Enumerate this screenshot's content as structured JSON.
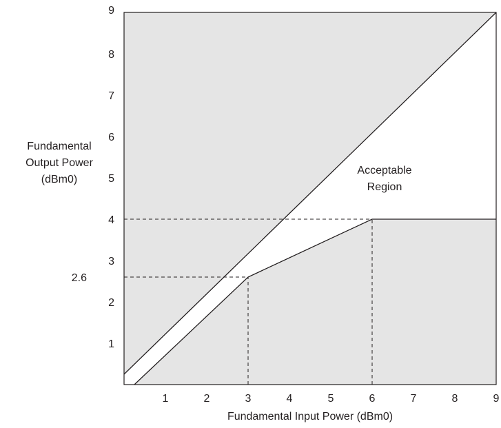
{
  "chart_data": {
    "type": "area",
    "title": "",
    "xlabel": "Fundamental Input Power (dBm0)",
    "ylabel": [
      "Fundamental",
      "Output Power",
      "(dBm0)"
    ],
    "xlim": [
      0,
      9
    ],
    "ylim": [
      0,
      9
    ],
    "x_ticks": [
      "1",
      "2",
      "3",
      "4",
      "5",
      "6",
      "7",
      "8",
      "9"
    ],
    "y_ticks": [
      "1",
      "2",
      "3",
      "4",
      "5",
      "6",
      "7",
      "8",
      "9"
    ],
    "grid": false,
    "legend": "none",
    "series": [
      {
        "points": [
          [
            0,
            0.25
          ],
          [
            9,
            9
          ]
        ]
      },
      {
        "points": [
          [
            0.25,
            0
          ],
          [
            3,
            2.6
          ],
          [
            6,
            4
          ],
          [
            9,
            4
          ]
        ]
      }
    ],
    "shaded_region_color": "#e5e5e5",
    "unshaded_region_color": "#ffffff",
    "reference_lines": [
      {
        "orientation": "horizontal",
        "y": 2.6,
        "x_from": 0,
        "x_to": 3
      },
      {
        "orientation": "vertical",
        "x": 3,
        "y_from": 0,
        "y_to": 2.6
      },
      {
        "orientation": "horizontal",
        "y": 4,
        "x_from": 0,
        "x_to": 6
      },
      {
        "orientation": "vertical",
        "x": 6,
        "y_from": 0,
        "y_to": 4
      }
    ],
    "marked_values": [
      {
        "axis": "y",
        "value": 2.6,
        "label": "2.6"
      }
    ],
    "annotations": [
      {
        "text": [
          "Acceptable",
          "Region"
        ],
        "x": 6.3,
        "y": 5.1
      }
    ]
  }
}
